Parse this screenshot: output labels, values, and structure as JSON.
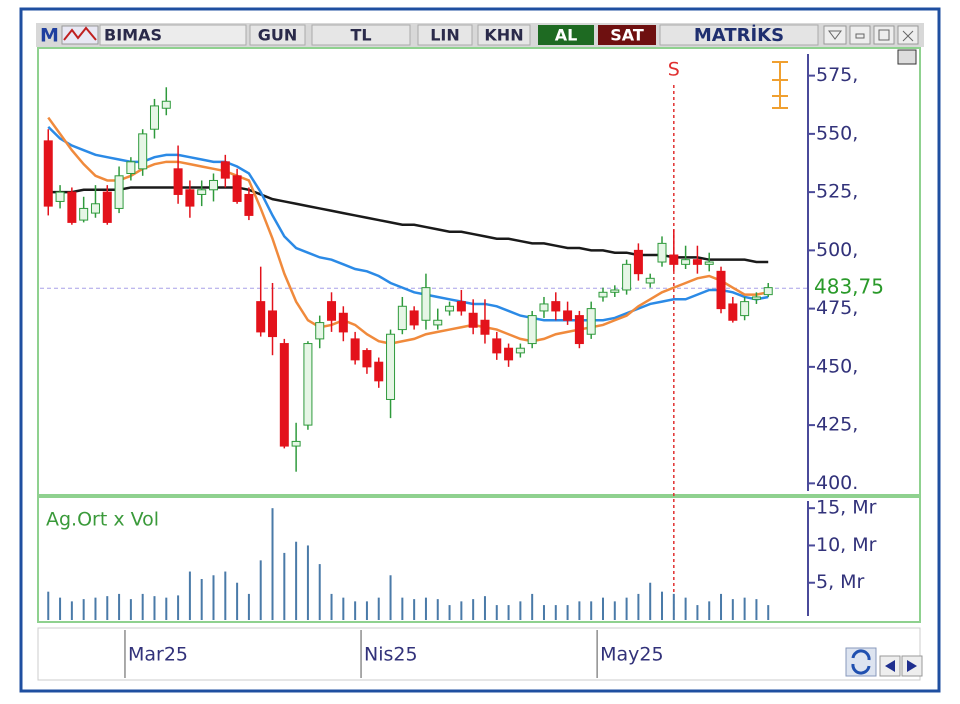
{
  "toolbar": {
    "logo": "M",
    "symbol": "BIMAS",
    "buttons": [
      "GUN",
      "TL",
      "LIN",
      "KHN"
    ],
    "buy": "AL",
    "sell": "SAT",
    "brand": "MATRİKS"
  },
  "chart_data": [
    {
      "type": "candlestick",
      "xlim": [
        -0.7,
        64.2
      ],
      "ylim": [
        395,
        586
      ],
      "yticks": [
        {
          "value": 575,
          "label": "575,"
        },
        {
          "value": 550,
          "label": "550,"
        },
        {
          "value": 525,
          "label": "525,"
        },
        {
          "value": 500,
          "label": "500,"
        },
        {
          "value": 475,
          "label": "475,"
        },
        {
          "value": 450,
          "label": "450,"
        },
        {
          "value": 425,
          "label": "425,"
        },
        {
          "value": 400,
          "label": "400."
        }
      ],
      "up_color": "#2f9a3c",
      "down_color": "#e3121b",
      "open": [
        547,
        521,
        525,
        513,
        516,
        525,
        518,
        533,
        535,
        552,
        561,
        535,
        526,
        524,
        526,
        538,
        532,
        524,
        478,
        474,
        460,
        416,
        425,
        462,
        478,
        473,
        462,
        457,
        452,
        436,
        466,
        474,
        470,
        468,
        474,
        478,
        473,
        470,
        462,
        458,
        456,
        460,
        474,
        478,
        474,
        472,
        464,
        480,
        482,
        483,
        500,
        486,
        495,
        498,
        494,
        496,
        494,
        491,
        477,
        472,
        479,
        481
      ],
      "high": [
        552,
        528,
        527,
        523,
        528,
        528,
        536,
        540,
        552,
        565,
        570,
        545,
        530,
        530,
        533,
        541,
        535,
        527,
        493,
        486,
        462,
        426,
        461,
        472,
        482,
        476,
        465,
        458,
        454,
        466,
        480,
        476,
        490,
        475,
        478,
        483,
        479,
        479,
        465,
        460,
        460,
        474,
        480,
        482,
        478,
        474,
        478,
        484,
        485,
        496,
        503,
        490,
        506,
        509,
        502,
        502,
        499,
        493,
        480,
        480,
        482,
        486
      ],
      "low": [
        515,
        518,
        511,
        512,
        514,
        511,
        516,
        530,
        532,
        548,
        558,
        520,
        514,
        519,
        521,
        527,
        520,
        513,
        463,
        455,
        415,
        405,
        423,
        458,
        465,
        461,
        451,
        447,
        441,
        428,
        464,
        466,
        466,
        466,
        472,
        472,
        464,
        460,
        453,
        450,
        454,
        458,
        471,
        470,
        468,
        458,
        462,
        478,
        480,
        481,
        487,
        484,
        493,
        491,
        492,
        490,
        491,
        473,
        469,
        470,
        477,
        480
      ],
      "close": [
        519,
        525,
        512,
        518,
        520,
        512,
        532,
        538,
        550,
        562,
        564,
        524,
        519,
        526,
        530,
        531,
        521,
        515,
        465,
        463,
        416,
        418,
        460,
        469,
        470,
        465,
        453,
        450,
        444,
        464,
        476,
        468,
        484,
        470,
        476,
        474,
        467,
        464,
        456,
        453,
        458,
        472,
        477,
        474,
        470,
        460,
        475,
        482,
        483,
        494,
        490,
        488,
        503,
        494,
        496,
        494,
        495,
        475,
        470,
        478,
        480,
        484
      ],
      "lines": [
        {
          "color": "#1a1a1a",
          "values": [
            525,
            525,
            525,
            526,
            526,
            526,
            526,
            527,
            527,
            527,
            527,
            527,
            527,
            527,
            527,
            527,
            527,
            526,
            524,
            522,
            521,
            520,
            519,
            518,
            517,
            516,
            515,
            514,
            513,
            512,
            511,
            511,
            510,
            509,
            508,
            508,
            507,
            506,
            505,
            505,
            504,
            503,
            503,
            502,
            501,
            501,
            500,
            500,
            499,
            499,
            498,
            498,
            498,
            497,
            497,
            497,
            496,
            496,
            496,
            496,
            495,
            495
          ]
        },
        {
          "color": "#2b8ae6",
          "values": [
            553,
            548,
            545,
            543,
            541,
            540,
            539,
            538,
            538,
            540,
            541,
            541,
            540,
            539,
            538,
            538,
            536,
            533,
            525,
            515,
            506,
            501,
            499,
            497,
            496,
            494,
            492,
            491,
            489,
            486,
            484,
            482,
            481,
            480,
            479,
            478,
            477,
            477,
            476,
            474,
            472,
            471,
            470,
            470,
            470,
            470,
            470,
            470,
            471,
            473,
            475,
            477,
            478,
            479,
            479,
            481,
            483,
            483,
            482,
            480,
            479,
            480
          ]
        },
        {
          "color": "#f08a3c",
          "values": [
            557,
            550,
            543,
            537,
            532,
            530,
            530,
            532,
            535,
            537,
            538,
            538,
            537,
            536,
            535,
            534,
            532,
            530,
            518,
            505,
            490,
            478,
            470,
            467,
            468,
            470,
            468,
            464,
            461,
            460,
            461,
            462,
            464,
            465,
            466,
            467,
            468,
            467,
            466,
            464,
            462,
            461,
            462,
            464,
            465,
            466,
            467,
            468,
            470,
            472,
            476,
            479,
            482,
            484,
            486,
            488,
            489,
            487,
            484,
            481,
            481,
            482
          ]
        }
      ],
      "last_price": {
        "value": 483.75,
        "label": "483,75"
      },
      "signal": {
        "label": "S",
        "index": 53
      }
    },
    {
      "type": "bar",
      "title": "Ag.Ort x Vol",
      "xlim": [
        -0.7,
        64.2
      ],
      "ylim": [
        0,
        16.5
      ],
      "yticks": [
        {
          "value": 15,
          "label": "15, Mr"
        },
        {
          "value": 10,
          "label": "10, Mr"
        },
        {
          "value": 5,
          "label": "5, Mr"
        }
      ],
      "color": "#4a7aa8",
      "values": [
        3.8,
        3,
        2.5,
        2.8,
        3,
        3.2,
        3.5,
        2.8,
        3.5,
        3.2,
        3,
        3.3,
        6.5,
        5.5,
        6,
        6.5,
        5,
        3.5,
        8,
        15,
        9,
        10.5,
        10,
        7.5,
        3.5,
        3,
        2.5,
        2.5,
        3,
        6,
        3,
        2.8,
        3,
        2.8,
        2,
        2.5,
        2.8,
        3.2,
        2,
        2,
        2.5,
        3.5,
        2,
        2,
        2,
        2.5,
        2.5,
        3,
        2.5,
        3,
        3.5,
        5,
        3.8,
        3.5,
        3,
        2,
        2.5,
        3.5,
        2.8,
        3,
        2.8,
        2
      ],
      "xticks": [
        {
          "value": 6.5,
          "label": "Mar25"
        },
        {
          "value": 26.5,
          "label": "Nis25"
        },
        {
          "value": 46.5,
          "label": "May25"
        }
      ]
    }
  ]
}
